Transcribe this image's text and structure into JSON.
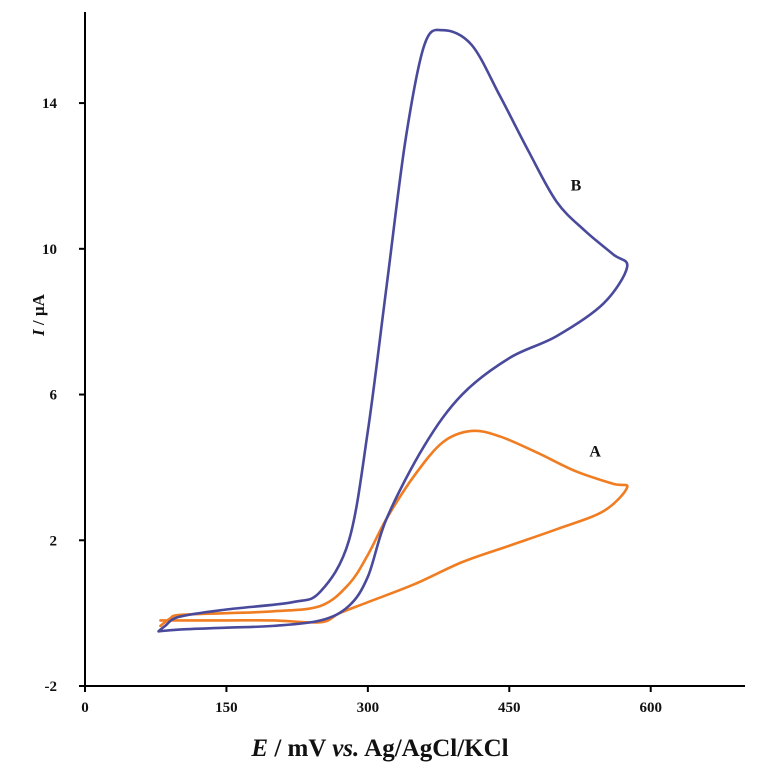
{
  "chart_data": {
    "type": "line",
    "title": "",
    "xlabel_parts": {
      "var": "E",
      "unit": " / mV ",
      "vs": "vs.",
      "ref": " Ag/AgCl/KCl"
    },
    "ylabel_parts": {
      "var": "I",
      "unit": " / µA"
    },
    "xlim": [
      0,
      700
    ],
    "ylim": [
      -2,
      16.5
    ],
    "x_ticks": [
      0,
      150,
      300,
      450,
      600
    ],
    "y_ticks": [
      -2,
      2,
      6,
      10,
      14
    ],
    "grid": false,
    "series": [
      {
        "name": "A",
        "color": "#f07d22",
        "points": [
          [
            80,
            -0.2
          ],
          [
            100,
            -0.2
          ],
          [
            150,
            -0.2
          ],
          [
            200,
            -0.2
          ],
          [
            250,
            -0.25
          ],
          [
            270,
            0.0
          ],
          [
            300,
            0.3
          ],
          [
            350,
            0.8
          ],
          [
            400,
            1.4
          ],
          [
            450,
            1.85
          ],
          [
            500,
            2.3
          ],
          [
            550,
            2.8
          ],
          [
            575,
            3.45
          ],
          [
            560,
            3.55
          ],
          [
            520,
            3.9
          ],
          [
            480,
            4.4
          ],
          [
            440,
            4.85
          ],
          [
            410,
            5.0
          ],
          [
            380,
            4.7
          ],
          [
            350,
            3.8
          ],
          [
            320,
            2.6
          ],
          [
            300,
            1.6
          ],
          [
            280,
            0.8
          ],
          [
            250,
            0.2
          ],
          [
            200,
            0.05
          ],
          [
            150,
            0.0
          ],
          [
            100,
            -0.05
          ],
          [
            90,
            -0.15
          ],
          [
            80,
            -0.35
          ]
        ]
      },
      {
        "name": "B",
        "color": "#4a4a9c",
        "points": [
          [
            78,
            -0.5
          ],
          [
            100,
            -0.45
          ],
          [
            150,
            -0.4
          ],
          [
            200,
            -0.35
          ],
          [
            250,
            -0.2
          ],
          [
            280,
            0.2
          ],
          [
            300,
            1.0
          ],
          [
            320,
            2.6
          ],
          [
            360,
            4.6
          ],
          [
            400,
            6.0
          ],
          [
            450,
            7.0
          ],
          [
            500,
            7.6
          ],
          [
            550,
            8.5
          ],
          [
            575,
            9.5
          ],
          [
            560,
            9.85
          ],
          [
            530,
            10.5
          ],
          [
            500,
            11.3
          ],
          [
            470,
            12.7
          ],
          [
            440,
            14.2
          ],
          [
            410,
            15.6
          ],
          [
            380,
            16.0
          ],
          [
            360,
            15.6
          ],
          [
            340,
            13.0
          ],
          [
            320,
            9.0
          ],
          [
            300,
            5.0
          ],
          [
            280,
            2.0
          ],
          [
            250,
            0.6
          ],
          [
            220,
            0.3
          ],
          [
            150,
            0.1
          ],
          [
            100,
            -0.1
          ],
          [
            85,
            -0.35
          ],
          [
            78,
            -0.5
          ]
        ]
      }
    ],
    "series_labels": [
      {
        "text": "A",
        "x": 535,
        "y": 4.3
      },
      {
        "text": "B",
        "x": 515,
        "y": 11.6
      }
    ]
  }
}
